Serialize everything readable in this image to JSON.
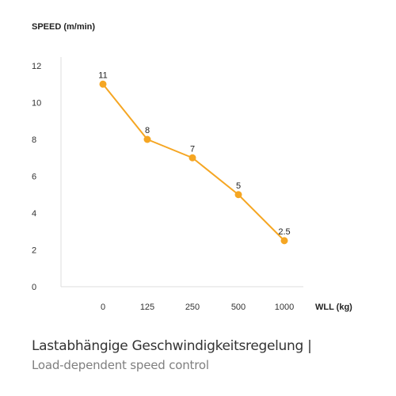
{
  "chart_data": {
    "type": "line",
    "categories": [
      "0",
      "125",
      "250",
      "500",
      "1000"
    ],
    "values": [
      11,
      8,
      7,
      5,
      2.5
    ],
    "data_labels": [
      "11",
      "8",
      "7",
      "5",
      "2.5"
    ],
    "ylabel": "SPEED (m/min)",
    "xlabel": "WLL (kg)",
    "ylim": [
      0,
      12
    ],
    "yticks": [
      "0",
      "2",
      "4",
      "6",
      "8",
      "10",
      "12"
    ],
    "grid": false,
    "line_color": "#f5a623",
    "marker_color": "#f5a623",
    "axis_color": "#dddddd"
  },
  "caption": {
    "title": "Lastabhängige Geschwindigkeitsregelung |",
    "subtitle": "Load-dependent speed control"
  }
}
